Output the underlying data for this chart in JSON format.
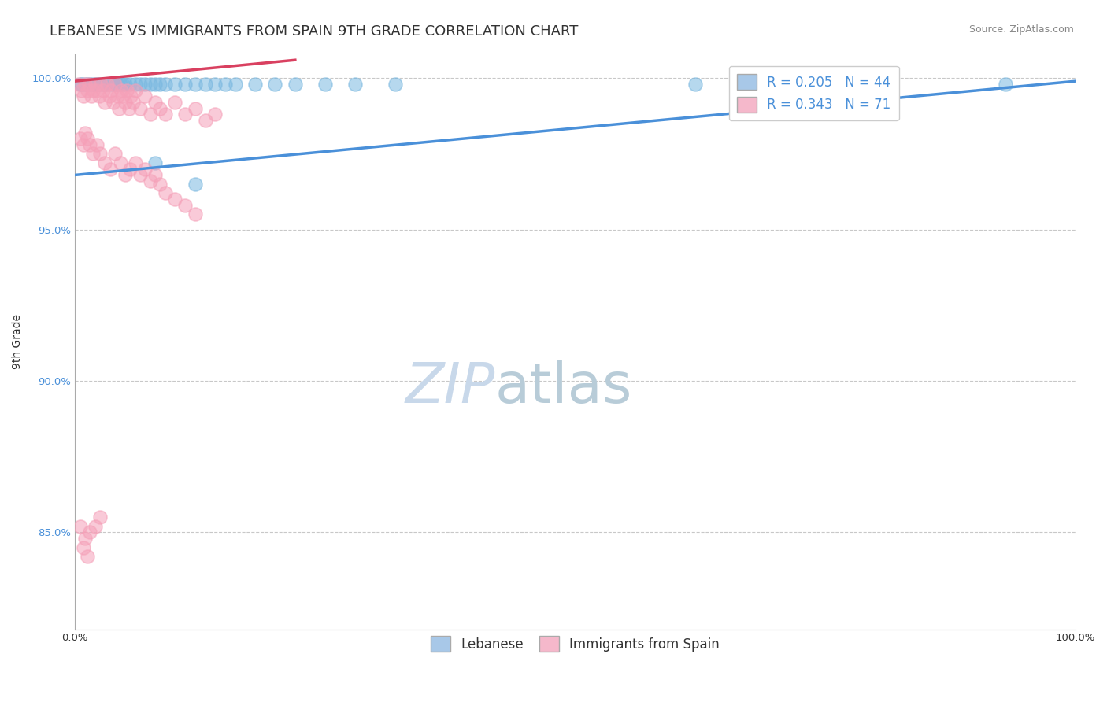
{
  "title": "LEBANESE VS IMMIGRANTS FROM SPAIN 9TH GRADE CORRELATION CHART",
  "source": "Source: ZipAtlas.com",
  "ylabel": "9th Grade",
  "xlim": [
    0.0,
    1.0
  ],
  "ylim": [
    0.818,
    1.008
  ],
  "yticks": [
    0.85,
    0.9,
    0.95,
    1.0
  ],
  "ytick_labels": [
    "85.0%",
    "90.0%",
    "95.0%",
    "100.0%"
  ],
  "legend_blue_text": "R = 0.205   N = 44",
  "legend_pink_text": "R = 0.343   N = 71",
  "legend_blue_color": "#a8c8e8",
  "legend_pink_color": "#f5b8cb",
  "blue_line_color": "#4a90d9",
  "pink_line_color": "#d94060",
  "scatter_blue_color": "#7ab8e0",
  "scatter_pink_color": "#f5a0b8",
  "scatter_alpha": 0.55,
  "scatter_size": 150,
  "grid_color": "#c8c8c8",
  "watermark_color": "#c8d8ea",
  "background_color": "#ffffff",
  "title_fontsize": 13,
  "axis_label_fontsize": 10,
  "tick_fontsize": 9.5,
  "legend_fontsize": 12,
  "blue_scatter_x": [
    0.005,
    0.007,
    0.01,
    0.012,
    0.015,
    0.018,
    0.02,
    0.022,
    0.025,
    0.028,
    0.03,
    0.032,
    0.035,
    0.038,
    0.04,
    0.042,
    0.045,
    0.048,
    0.05,
    0.055,
    0.06,
    0.065,
    0.07,
    0.075,
    0.08,
    0.085,
    0.09,
    0.1,
    0.11,
    0.12,
    0.13,
    0.14,
    0.15,
    0.16,
    0.18,
    0.2,
    0.22,
    0.25,
    0.28,
    0.32,
    0.08,
    0.12,
    0.62,
    0.93
  ],
  "blue_scatter_y": [
    0.998,
    0.998,
    0.998,
    0.998,
    0.998,
    0.998,
    0.998,
    0.998,
    0.998,
    0.998,
    0.998,
    0.998,
    0.998,
    0.998,
    0.998,
    0.998,
    0.998,
    0.998,
    0.998,
    0.998,
    0.998,
    0.998,
    0.998,
    0.998,
    0.998,
    0.998,
    0.998,
    0.998,
    0.998,
    0.998,
    0.998,
    0.998,
    0.998,
    0.998,
    0.998,
    0.998,
    0.998,
    0.998,
    0.998,
    0.998,
    0.972,
    0.965,
    0.998,
    0.998
  ],
  "blue_trend_x0": 0.0,
  "blue_trend_y0": 0.968,
  "blue_trend_x1": 1.0,
  "blue_trend_y1": 0.999,
  "pink_trend_x0": 0.0,
  "pink_trend_y0": 0.999,
  "pink_trend_x1": 0.22,
  "pink_trend_y1": 1.006,
  "pink_scatter_x": [
    0.004,
    0.006,
    0.008,
    0.01,
    0.012,
    0.014,
    0.016,
    0.018,
    0.02,
    0.022,
    0.024,
    0.026,
    0.028,
    0.03,
    0.032,
    0.034,
    0.036,
    0.038,
    0.04,
    0.042,
    0.044,
    0.046,
    0.048,
    0.05,
    0.052,
    0.054,
    0.056,
    0.058,
    0.06,
    0.065,
    0.07,
    0.075,
    0.08,
    0.085,
    0.09,
    0.1,
    0.11,
    0.12,
    0.13,
    0.14,
    0.005,
    0.008,
    0.01,
    0.012,
    0.015,
    0.018,
    0.022,
    0.025,
    0.03,
    0.035,
    0.04,
    0.045,
    0.05,
    0.055,
    0.06,
    0.065,
    0.07,
    0.075,
    0.08,
    0.085,
    0.09,
    0.1,
    0.11,
    0.12,
    0.005,
    0.01,
    0.015,
    0.02,
    0.025,
    0.008,
    0.012
  ],
  "pink_scatter_y": [
    0.998,
    0.996,
    0.994,
    0.998,
    0.996,
    0.998,
    0.994,
    0.996,
    0.998,
    0.996,
    0.994,
    0.998,
    0.996,
    0.992,
    0.998,
    0.994,
    0.996,
    0.992,
    0.998,
    0.994,
    0.99,
    0.996,
    0.994,
    0.992,
    0.996,
    0.99,
    0.994,
    0.992,
    0.996,
    0.99,
    0.994,
    0.988,
    0.992,
    0.99,
    0.988,
    0.992,
    0.988,
    0.99,
    0.986,
    0.988,
    0.98,
    0.978,
    0.982,
    0.98,
    0.978,
    0.975,
    0.978,
    0.975,
    0.972,
    0.97,
    0.975,
    0.972,
    0.968,
    0.97,
    0.972,
    0.968,
    0.97,
    0.966,
    0.968,
    0.965,
    0.962,
    0.96,
    0.958,
    0.955,
    0.852,
    0.848,
    0.85,
    0.852,
    0.855,
    0.845,
    0.842
  ]
}
